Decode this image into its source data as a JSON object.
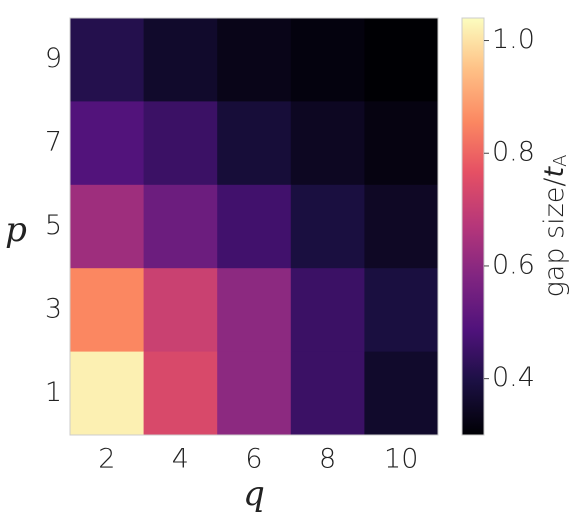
{
  "chart_data": {
    "type": "heatmap",
    "xlabel": "q",
    "ylabel": "p",
    "x_categories": [
      2,
      4,
      6,
      8,
      10
    ],
    "y_categories": [
      9,
      7,
      5,
      3,
      1
    ],
    "values": [
      [
        0.41,
        0.36,
        0.33,
        0.315,
        0.3
      ],
      [
        0.49,
        0.45,
        0.38,
        0.345,
        0.32
      ],
      [
        0.63,
        0.54,
        0.46,
        0.39,
        0.35
      ],
      [
        0.855,
        0.71,
        0.6,
        0.45,
        0.39
      ],
      [
        1.02,
        0.74,
        0.6,
        0.45,
        0.36
      ]
    ],
    "colormap": "magma",
    "clim": [
      0.3,
      1.04
    ],
    "colorbar_ticks": [
      0.4,
      0.6,
      0.8,
      {
        "value": 1,
        "label": "1.0"
      }
    ],
    "colorbar_label": {
      "text": "gap size/",
      "symbol": "t",
      "subscript": "A"
    }
  }
}
